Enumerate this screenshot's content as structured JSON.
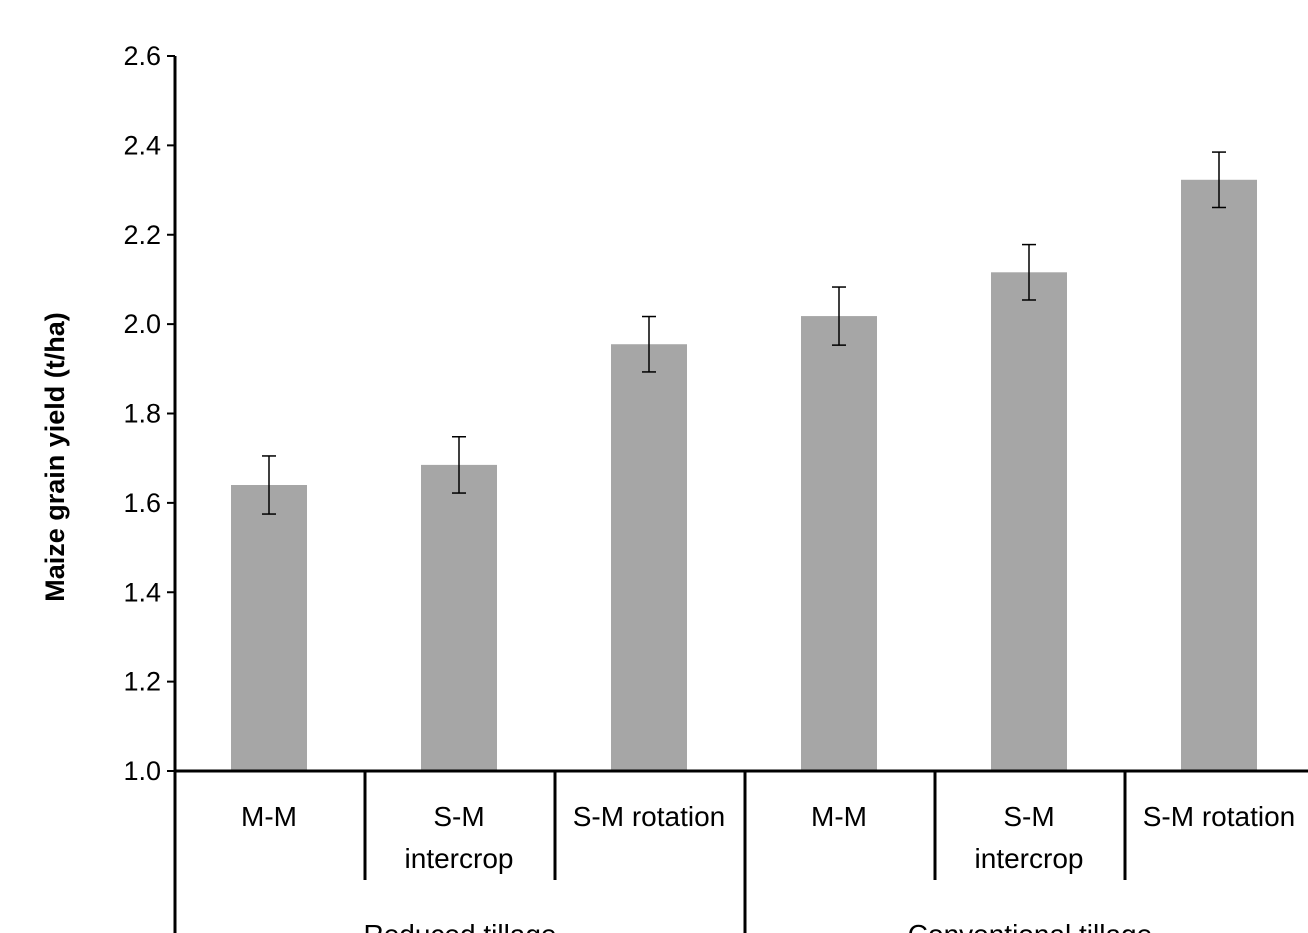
{
  "chart_data": {
    "type": "bar",
    "title": "",
    "xlabel": "",
    "ylabel": "Maize grain yield (t/ha)",
    "ylim": [
      1.0,
      2.6
    ],
    "yticks": [
      "1.0",
      "1.2",
      "1.4",
      "1.6",
      "1.8",
      "2.0",
      "2.2",
      "2.4",
      "2.6"
    ],
    "grid": false,
    "legend": "none",
    "bar_color": "#a6a6a6",
    "groups": [
      {
        "name": "Reduced tillage",
        "categories": [
          {
            "label_lines": [
              "M-M"
            ]
          },
          {
            "label_lines": [
              "S-M",
              "intercrop"
            ]
          },
          {
            "label_lines": [
              "S-M rotation"
            ]
          }
        ],
        "values": [
          1.64,
          1.685,
          1.955
        ],
        "errors": [
          0.065,
          0.063,
          0.062
        ]
      },
      {
        "name": "Conventional tillage",
        "categories": [
          {
            "label_lines": [
              "M-M"
            ]
          },
          {
            "label_lines": [
              "S-M",
              "intercrop"
            ]
          },
          {
            "label_lines": [
              "S-M rotation"
            ]
          }
        ],
        "values": [
          2.018,
          2.116,
          2.323
        ],
        "errors": [
          0.065,
          0.062,
          0.062
        ]
      }
    ]
  }
}
